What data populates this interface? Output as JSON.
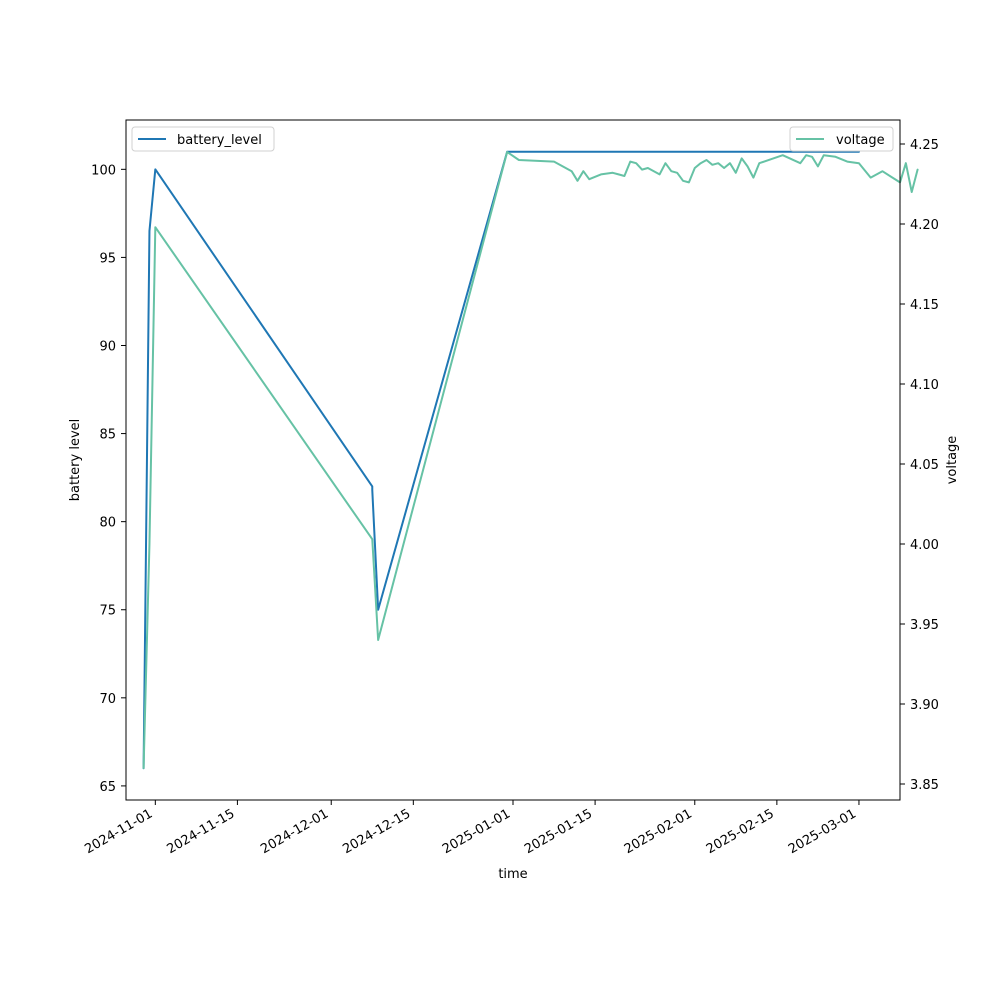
{
  "chart_data": {
    "type": "line",
    "xlabel": "time",
    "ylabel_left": "battery level",
    "ylabel_right": "voltage",
    "x_ticks": [
      "2024-11-01",
      "2024-11-15",
      "2024-12-01",
      "2024-12-15",
      "2025-01-01",
      "2025-01-15",
      "2025-02-01",
      "2025-02-15",
      "2025-03-01"
    ],
    "x_range": [
      "2024-10-27",
      "2025-03-08"
    ],
    "y_left_ticks": [
      65,
      70,
      75,
      80,
      85,
      90,
      95,
      100
    ],
    "y_left_range": [
      64.2,
      102.8
    ],
    "y_right_ticks": [
      "3.85",
      "3.90",
      "3.95",
      "4.00",
      "4.05",
      "4.10",
      "4.15",
      "4.20",
      "4.25"
    ],
    "y_right_range": [
      3.84,
      4.265
    ],
    "legend_left": "top-left",
    "legend_right": "top-right",
    "grid": false,
    "series": [
      {
        "name": "battery_level",
        "axis": "left",
        "color": "#1f77b4",
        "points": [
          [
            "2024-10-30",
            66
          ],
          [
            "2024-10-31",
            96.5
          ],
          [
            "2024-11-01",
            100
          ],
          [
            "2024-12-08",
            82
          ],
          [
            "2024-12-08",
            81.8
          ],
          [
            "2024-12-09",
            75
          ],
          [
            "2024-12-31",
            101
          ],
          [
            "2025-01-01",
            101
          ],
          [
            "2025-03-01",
            101
          ]
        ]
      },
      {
        "name": "voltage",
        "axis": "right",
        "color": "#66c2a5",
        "points": [
          [
            "2024-10-30",
            3.86
          ],
          [
            "2024-10-31",
            4.0
          ],
          [
            "2024-11-01",
            4.198
          ],
          [
            "2024-12-08",
            4.003
          ],
          [
            "2024-12-09",
            3.94
          ],
          [
            "2024-12-31",
            4.245
          ],
          [
            "2025-01-02",
            4.24
          ],
          [
            "2025-01-08",
            4.239
          ],
          [
            "2025-01-11",
            4.233
          ],
          [
            "2025-01-12",
            4.227
          ],
          [
            "2025-01-13",
            4.233
          ],
          [
            "2025-01-14",
            4.228
          ],
          [
            "2025-01-16",
            4.231
          ],
          [
            "2025-01-18",
            4.232
          ],
          [
            "2025-01-19",
            4.231
          ],
          [
            "2025-01-20",
            4.23
          ],
          [
            "2025-01-21",
            4.239
          ],
          [
            "2025-01-22",
            4.238
          ],
          [
            "2025-01-23",
            4.234
          ],
          [
            "2025-01-24",
            4.235
          ],
          [
            "2025-01-26",
            4.231
          ],
          [
            "2025-01-27",
            4.238
          ],
          [
            "2025-01-28",
            4.233
          ],
          [
            "2025-01-29",
            4.232
          ],
          [
            "2025-01-30",
            4.227
          ],
          [
            "2025-01-31",
            4.226
          ],
          [
            "2025-02-01",
            4.235
          ],
          [
            "2025-02-02",
            4.238
          ],
          [
            "2025-02-03",
            4.24
          ],
          [
            "2025-02-04",
            4.237
          ],
          [
            "2025-02-05",
            4.238
          ],
          [
            "2025-02-06",
            4.235
          ],
          [
            "2025-02-07",
            4.238
          ],
          [
            "2025-02-08",
            4.232
          ],
          [
            "2025-02-09",
            4.241
          ],
          [
            "2025-02-10",
            4.236
          ],
          [
            "2025-02-11",
            4.229
          ],
          [
            "2025-02-12",
            4.238
          ],
          [
            "2025-02-16",
            4.243
          ],
          [
            "2025-02-19",
            4.238
          ],
          [
            "2025-02-20",
            4.243
          ],
          [
            "2025-02-21",
            4.242
          ],
          [
            "2025-02-22",
            4.236
          ],
          [
            "2025-02-23",
            4.243
          ],
          [
            "2025-02-25",
            4.242
          ],
          [
            "2025-02-27",
            4.239
          ],
          [
            "2025-03-01",
            4.238
          ],
          [
            "2025-03-03",
            4.229
          ],
          [
            "2025-03-05",
            4.233
          ],
          [
            "2025-03-08",
            4.226
          ],
          [
            "2025-03-09",
            4.238
          ],
          [
            "2025-03-10",
            4.22
          ],
          [
            "2025-03-11",
            4.234
          ]
        ]
      }
    ]
  }
}
